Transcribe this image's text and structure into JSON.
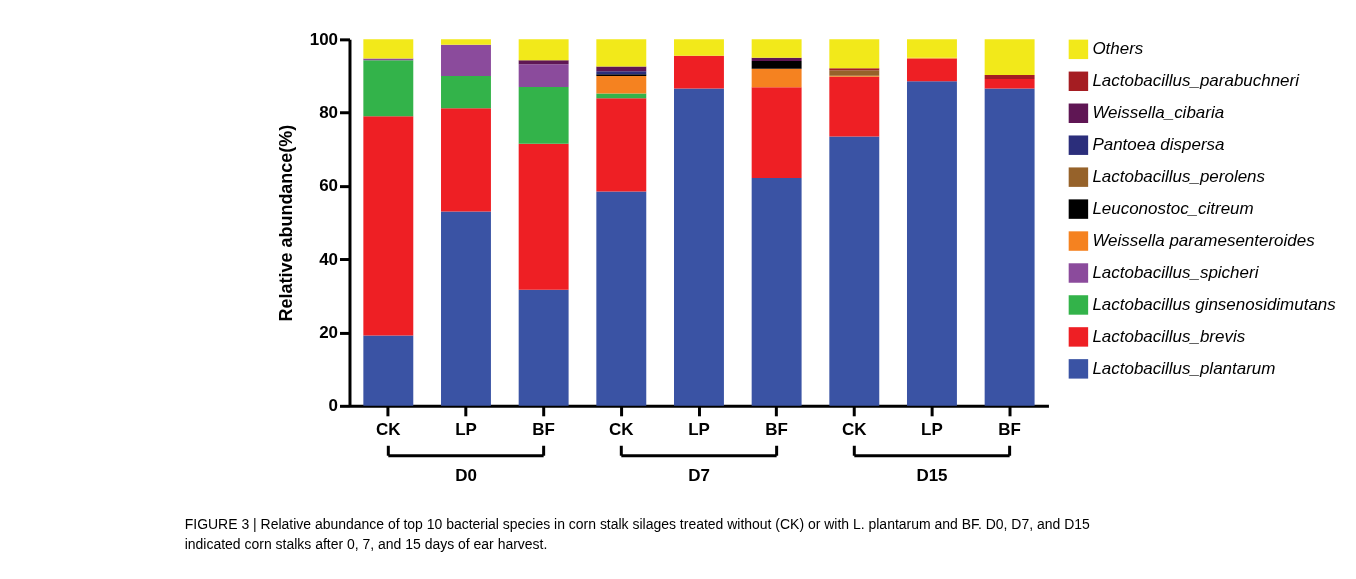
{
  "chart_data": {
    "type": "bar",
    "stacked": true,
    "ylabel": "Relative abundance(%)",
    "categories": [
      "CK",
      "LP",
      "BF",
      "CK",
      "LP",
      "BF",
      "CK",
      "LP",
      "BF"
    ],
    "ylim": [
      0,
      100
    ],
    "yticks": [
      0,
      20,
      40,
      60,
      80,
      100
    ],
    "grid": false,
    "legend": "right",
    "series": [
      {
        "name": "Lactobacillus_plantarum",
        "color": "#3a53a4",
        "values": [
          19.2,
          53.0,
          31.7,
          58.5,
          86.6,
          62.2,
          73.5,
          88.6,
          86.6
        ]
      },
      {
        "name": "Lactobacillus_brevis",
        "color": "#ee1f24",
        "values": [
          59.8,
          28.2,
          39.8,
          25.4,
          8.9,
          24.7,
          16.3,
          6.1,
          2.6
        ]
      },
      {
        "name": "Lactobacillus ginsenosidimutans",
        "color": "#33b34a",
        "values": [
          15.3,
          8.8,
          15.5,
          1.3,
          null,
          null,
          null,
          null,
          null
        ]
      },
      {
        "name": "Lactobacillus_spicheri",
        "color": "#8b4b9c",
        "values": [
          0.5,
          8.5,
          6.2,
          null,
          null,
          null,
          null,
          null,
          null
        ]
      },
      {
        "name": "Weissella paramesenteroides",
        "color": "#f58220",
        "values": [
          null,
          null,
          null,
          4.8,
          null,
          5.1,
          0.3,
          0.3,
          null
        ]
      },
      {
        "name": "Leuconostoc_citreum",
        "color": "#000000",
        "values": [
          null,
          null,
          null,
          0.5,
          null,
          2.1,
          null,
          null,
          null
        ]
      },
      {
        "name": "Lactobacillus_perolens",
        "color": "#96622a",
        "values": [
          null,
          null,
          null,
          null,
          null,
          null,
          1.5,
          null,
          null
        ]
      },
      {
        "name": "Pantoea dispersa",
        "color": "#2b2e7b",
        "values": [
          null,
          null,
          null,
          0.8,
          null,
          null,
          null,
          null,
          null
        ]
      },
      {
        "name": "Weissella_cibaria",
        "color": "#5f1654",
        "values": [
          null,
          null,
          1.1,
          1.3,
          null,
          0.9,
          null,
          null,
          null
        ]
      },
      {
        "name": "Lactobacillus_parabuchneri",
        "color": "#a51d22",
        "values": [
          null,
          null,
          null,
          null,
          null,
          null,
          0.5,
          null,
          1.1
        ]
      },
      {
        "name": "Others",
        "color": "#f2e91a",
        "values": [
          5.2,
          1.5,
          5.7,
          7.4,
          4.5,
          5.0,
          7.9,
          5.0,
          9.7
        ]
      }
    ],
    "annotations": [
      "D0",
      "D7",
      "D15",
      "FIGURE 3 | Relative abundance of top 10 bacterial species in corn stalk silages treated without (CK) or with L. plantarum and BF. D0, D7, and D15 indicated corn stalks after 0, 7, and 15 days of ear harvest."
    ]
  }
}
